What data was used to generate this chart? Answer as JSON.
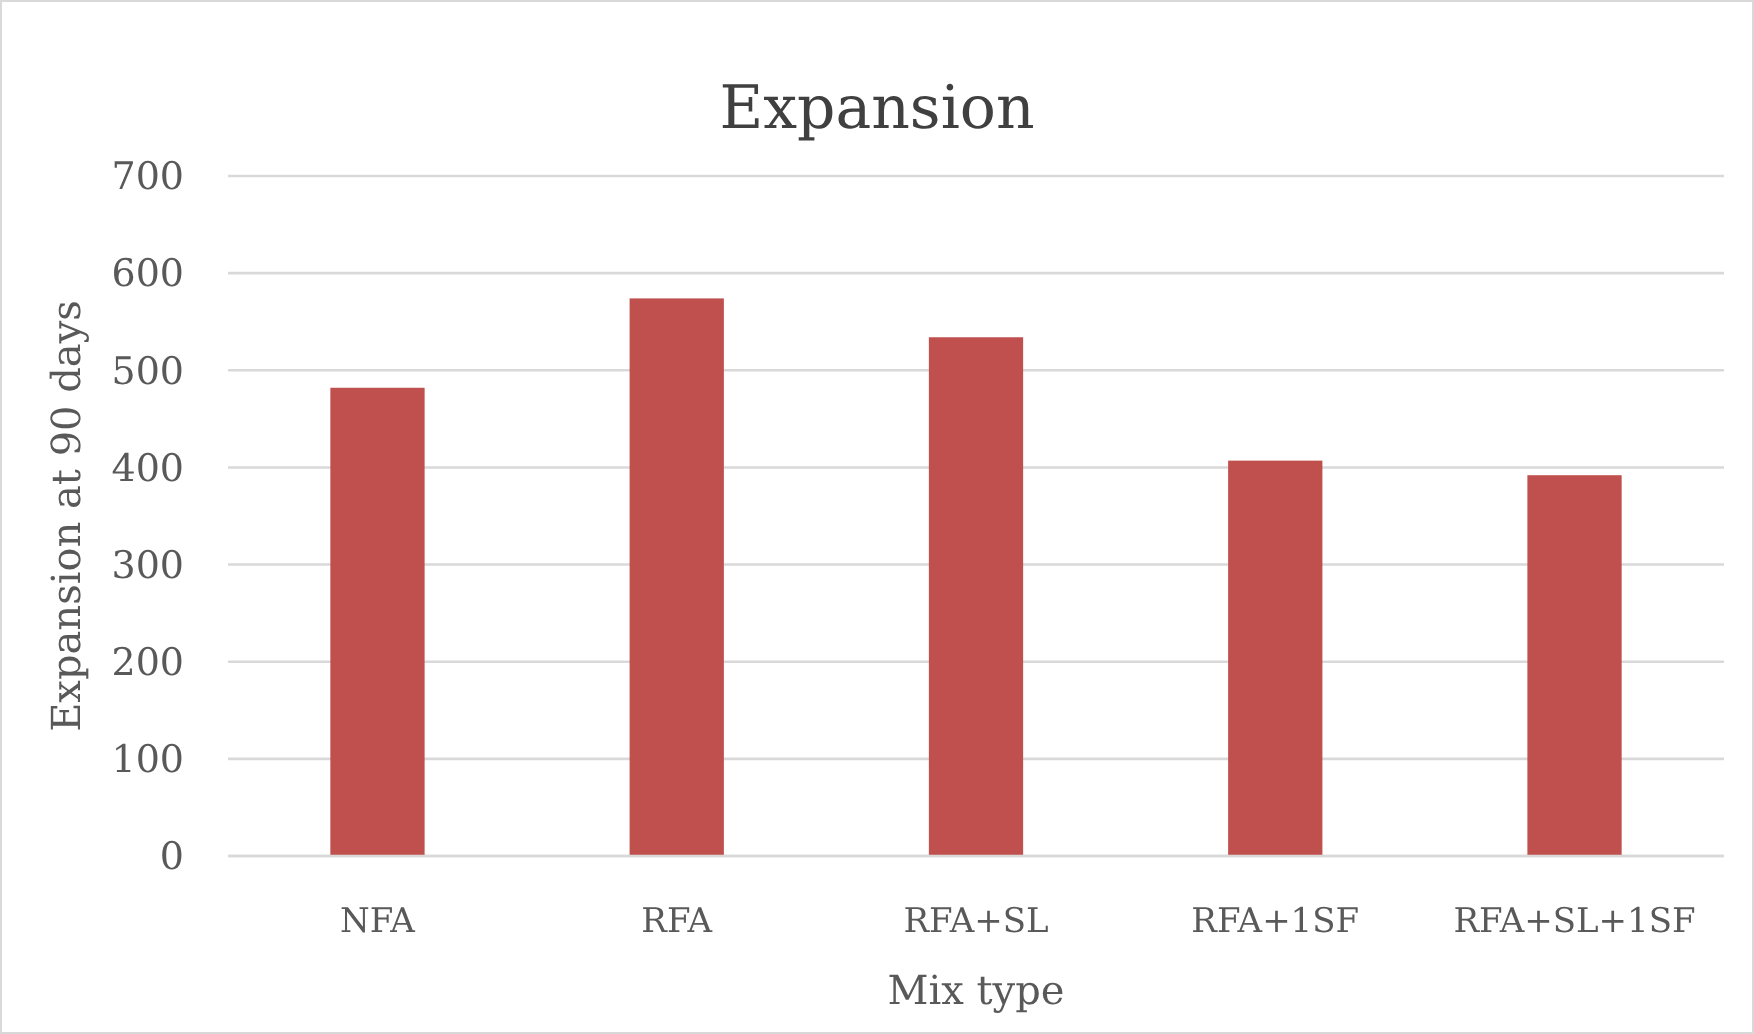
{
  "chart_data": {
    "type": "bar",
    "title": "Expansion",
    "xlabel": "Mix type",
    "ylabel": "Expansion at 90 days",
    "categories": [
      "NFA",
      "RFA",
      "RFA+SL",
      "RFA+1SF",
      "RFA+SL+1SF"
    ],
    "values": [
      482,
      574,
      534,
      407,
      392
    ],
    "color": "#c0504d",
    "ylim": [
      0,
      700
    ],
    "yticks": [
      0,
      100,
      200,
      300,
      400,
      500,
      600,
      700
    ],
    "grid": "y"
  }
}
